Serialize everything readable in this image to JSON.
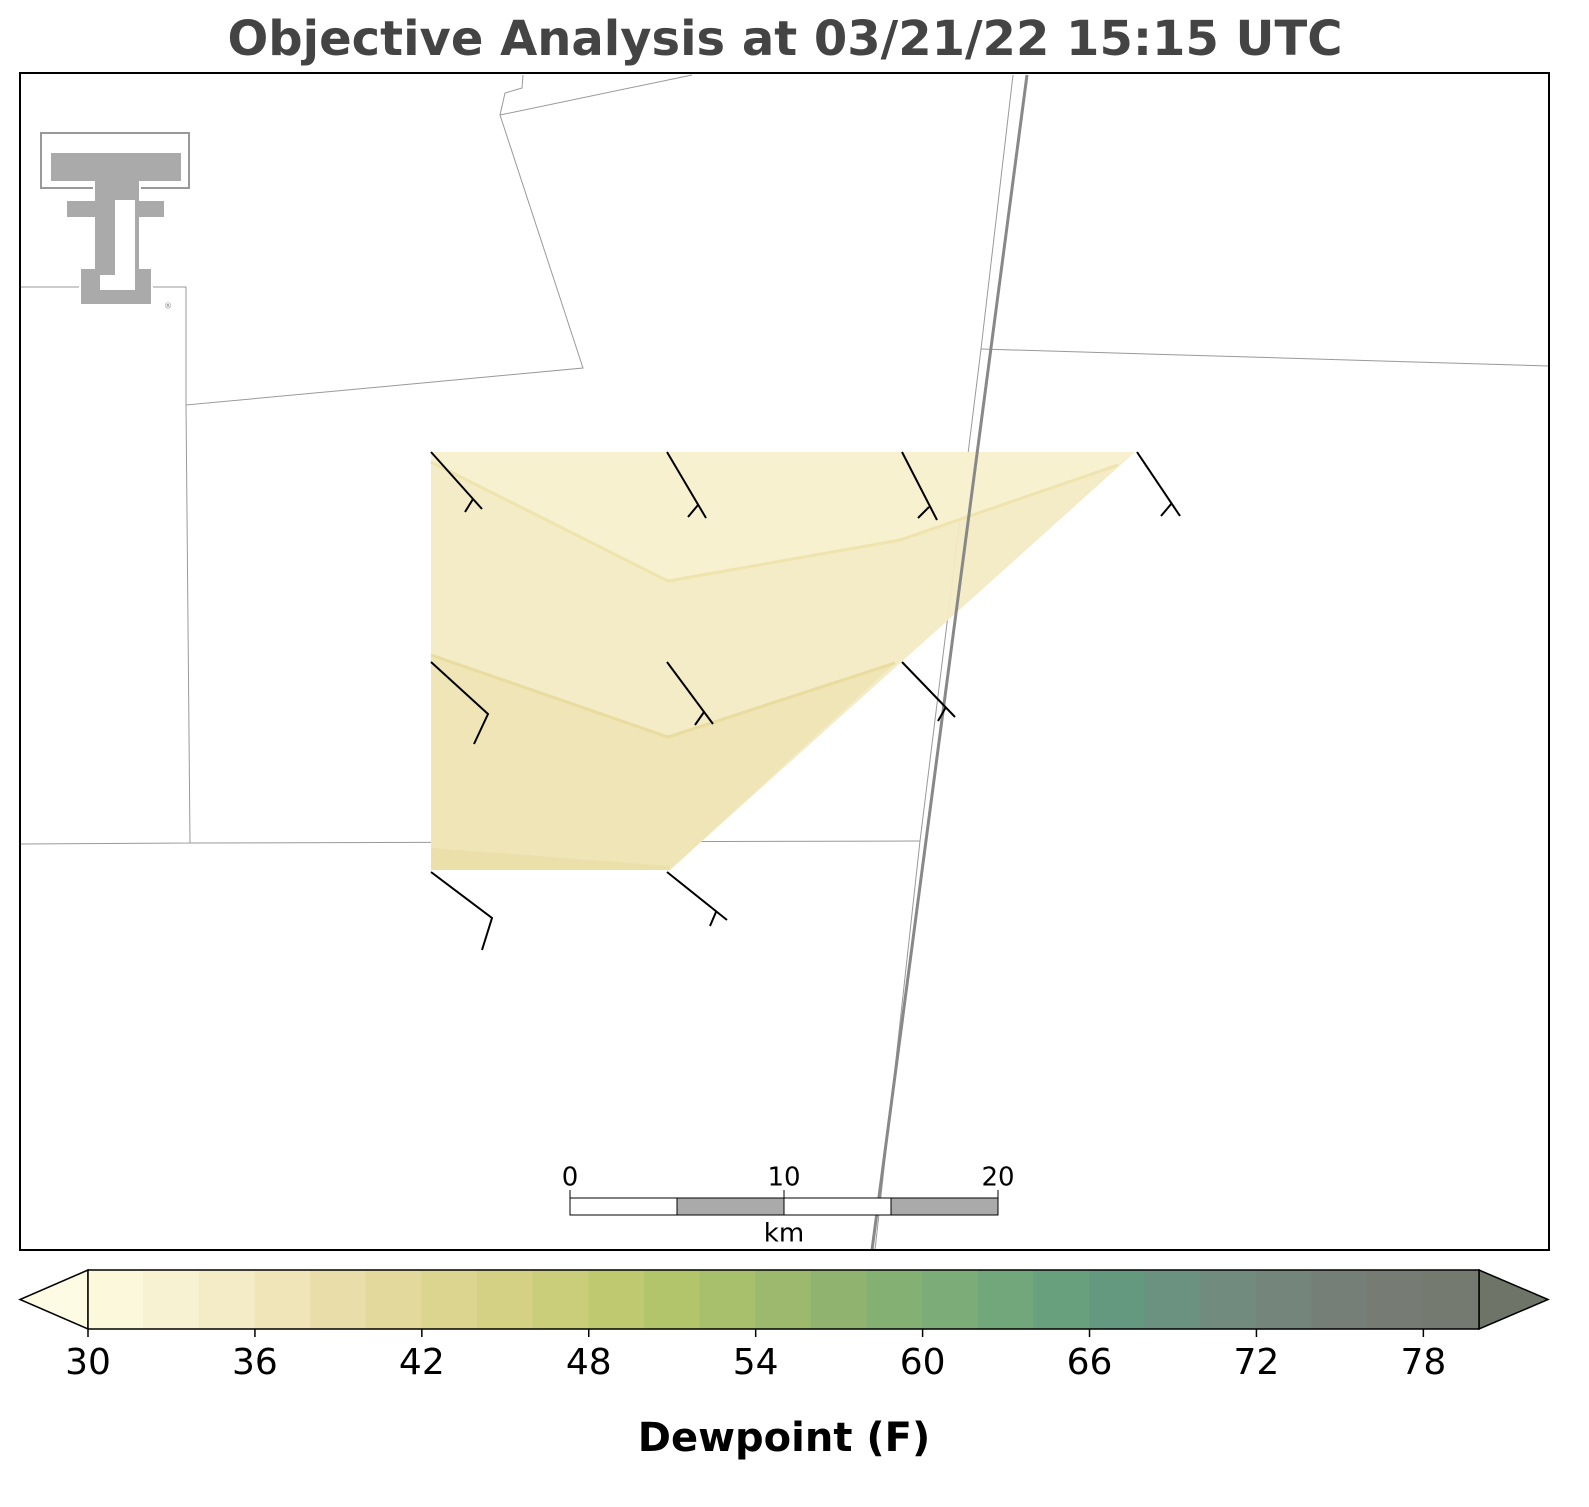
{
  "title": "Objective Analysis at 03/21/22 15:15 UTC",
  "colorbar": {
    "label": "Dewpoint (F)",
    "lim": [
      30,
      80
    ],
    "ticks": [
      30,
      36,
      42,
      48,
      54,
      60,
      66,
      72,
      78
    ],
    "levels": [
      30,
      32,
      34,
      36,
      38,
      40,
      42,
      44,
      46,
      48,
      50,
      52,
      54,
      56,
      58,
      60,
      62,
      64,
      66,
      68,
      70,
      72,
      74,
      76,
      78,
      80
    ],
    "colors": [
      "#fbf8dc",
      "#f7f2d2",
      "#f3ecc6",
      "#efe5b9",
      "#e9dea9",
      "#e4d99c",
      "#dcd58f",
      "#d4d184",
      "#cacd7a",
      "#bfca70",
      "#b3c56a",
      "#a8bf6b",
      "#9cb96d",
      "#90b470",
      "#85b074",
      "#7cac78",
      "#72a67b",
      "#689f7d",
      "#64987f",
      "#6b9180",
      "#718b7f",
      "#74857b",
      "#767f77",
      "#767c74",
      "#747a70"
    ],
    "under_color": "#fdfbe3",
    "over_color": "#6e7468"
  },
  "scale_bar": {
    "ticks": [
      0,
      10,
      20
    ],
    "unit": "km"
  }
}
